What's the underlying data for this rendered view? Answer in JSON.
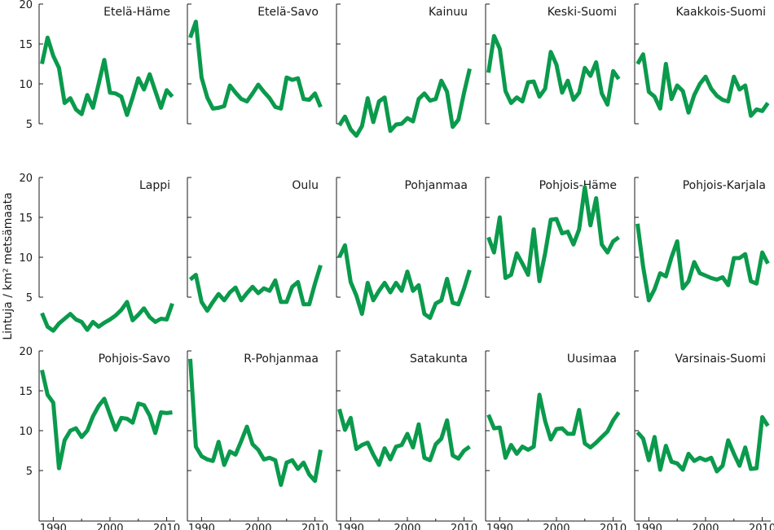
{
  "chart_data": {
    "type": "line",
    "layout": "small-multiples",
    "rows": 3,
    "cols": 5,
    "ylabel": "Lintuja / km² metsämaata",
    "xlim": [
      1987.5,
      2011.5
    ],
    "ylim": [
      0,
      20
    ],
    "xticks": [
      1990,
      2000,
      2010
    ],
    "yticks": [
      5,
      10,
      15,
      20
    ],
    "grid": false,
    "x": [
      1988,
      1989,
      1990,
      1991,
      1992,
      1993,
      1994,
      1995,
      1996,
      1997,
      1998,
      1999,
      2000,
      2001,
      2002,
      2003,
      2004,
      2005,
      2006,
      2007,
      2008,
      2009,
      2010,
      2011
    ],
    "line_color": "#0a9a4c",
    "panels": [
      {
        "name": "Etelä-Häme",
        "values": [
          12.5,
          15.8,
          13.5,
          12.0,
          7.6,
          8.2,
          6.8,
          6.2,
          8.6,
          7.0,
          10.0,
          13.0,
          8.9,
          8.8,
          8.4,
          6.1,
          8.3,
          10.7,
          9.3,
          11.2,
          9.1,
          7.0,
          9.2,
          8.4
        ]
      },
      {
        "name": "Etelä-Savo",
        "values": [
          15.8,
          17.8,
          10.8,
          8.3,
          6.9,
          7.0,
          7.2,
          9.8,
          8.9,
          8.1,
          7.8,
          8.8,
          9.9,
          9.0,
          8.2,
          7.1,
          6.9,
          10.8,
          10.5,
          10.7,
          8.1,
          8.0,
          8.8,
          7.1
        ]
      },
      {
        "name": "Kainuu",
        "values": [
          4.8,
          5.9,
          4.3,
          3.5,
          4.7,
          8.2,
          5.2,
          7.8,
          8.3,
          4.1,
          4.9,
          5.0,
          5.7,
          5.3,
          8.1,
          8.8,
          7.9,
          8.1,
          10.4,
          9.0,
          4.6,
          5.5,
          8.9,
          11.9
        ]
      },
      {
        "name": "Keski-Suomi",
        "values": [
          11.4,
          16.0,
          14.4,
          9.1,
          7.6,
          8.3,
          7.8,
          10.2,
          10.3,
          8.4,
          9.4,
          14.0,
          12.4,
          8.9,
          10.4,
          8.0,
          8.9,
          12.0,
          11.0,
          12.7,
          8.8,
          7.4,
          11.6,
          10.6
        ]
      },
      {
        "name": "Kaakkois-Suomi",
        "values": [
          12.5,
          13.7,
          9.0,
          8.4,
          6.9,
          12.5,
          8.1,
          9.8,
          9.1,
          6.4,
          8.6,
          10.0,
          10.9,
          9.4,
          8.5,
          8.0,
          7.8,
          10.9,
          9.3,
          9.8,
          6.0,
          6.8,
          6.6,
          7.6
        ]
      },
      {
        "name": "Lappi",
        "values": [
          3.0,
          1.3,
          0.8,
          1.7,
          2.3,
          2.9,
          2.2,
          1.9,
          0.9,
          1.9,
          1.3,
          1.8,
          2.2,
          2.7,
          3.4,
          4.4,
          2.1,
          2.8,
          3.6,
          2.5,
          1.9,
          2.3,
          2.2,
          4.2
        ]
      },
      {
        "name": "Oulu",
        "values": [
          7.2,
          7.8,
          4.4,
          3.3,
          4.4,
          5.4,
          4.6,
          5.6,
          6.2,
          4.6,
          5.5,
          6.3,
          5.5,
          6.1,
          5.8,
          7.1,
          4.4,
          4.4,
          6.3,
          6.9,
          4.1,
          4.1,
          6.7,
          9.0
        ]
      },
      {
        "name": "Pohjanmaa",
        "values": [
          10.0,
          11.5,
          6.9,
          5.2,
          2.9,
          6.8,
          4.6,
          5.8,
          6.8,
          5.6,
          6.8,
          5.8,
          8.2,
          5.8,
          6.5,
          2.9,
          2.4,
          4.2,
          4.6,
          7.3,
          4.3,
          4.1,
          6.1,
          8.4
        ]
      },
      {
        "name": "Pohjois-Häme",
        "values": [
          12.5,
          10.6,
          15.0,
          7.4,
          7.8,
          10.5,
          9.2,
          7.8,
          13.5,
          7.0,
          10.5,
          14.7,
          14.8,
          13.0,
          13.2,
          11.6,
          13.5,
          18.8,
          14.0,
          17.4,
          11.6,
          10.6,
          12.0,
          12.5
        ]
      },
      {
        "name": "Pohjois-Karjala",
        "values": [
          14.2,
          8.8,
          4.6,
          6.0,
          8.0,
          7.6,
          10.0,
          12.0,
          6.1,
          7.0,
          9.4,
          8.0,
          7.7,
          7.4,
          7.2,
          7.5,
          6.5,
          9.9,
          9.9,
          10.4,
          7.0,
          6.7,
          10.6,
          9.2
        ]
      },
      {
        "name": "Pohjois-Savo",
        "values": [
          17.6,
          14.5,
          13.5,
          5.3,
          8.8,
          10.0,
          10.3,
          9.2,
          10.0,
          11.8,
          13.1,
          14.0,
          12.0,
          10.1,
          11.6,
          11.5,
          11.0,
          13.4,
          13.2,
          11.9,
          9.7,
          12.3,
          12.2,
          12.3
        ]
      },
      {
        "name": "R-Pohjanmaa",
        "values": [
          19.0,
          8.0,
          6.8,
          6.4,
          6.2,
          8.6,
          5.7,
          7.4,
          7.0,
          8.7,
          10.5,
          8.3,
          7.6,
          6.4,
          6.6,
          6.3,
          3.2,
          6.0,
          6.3,
          5.2,
          6.0,
          4.5,
          3.7,
          7.6
        ]
      },
      {
        "name": "Satakunta",
        "values": [
          12.7,
          10.1,
          11.6,
          7.7,
          8.2,
          8.5,
          7.0,
          5.7,
          7.8,
          6.4,
          8.0,
          8.2,
          9.6,
          7.9,
          10.8,
          6.6,
          6.3,
          8.3,
          9.0,
          11.3,
          6.9,
          6.5,
          7.5,
          8.0
        ]
      },
      {
        "name": "Uusimaa",
        "values": [
          12.0,
          10.3,
          10.4,
          6.6,
          8.2,
          7.1,
          8.0,
          7.6,
          8.0,
          14.5,
          11.2,
          8.9,
          10.2,
          10.3,
          9.6,
          9.6,
          12.6,
          8.4,
          7.9,
          8.5,
          9.2,
          9.9,
          11.3,
          12.3
        ]
      },
      {
        "name": "Varsinais-Suomi",
        "values": [
          9.8,
          9.0,
          6.3,
          9.2,
          5.1,
          8.1,
          6.1,
          5.9,
          5.1,
          7.1,
          6.2,
          6.6,
          6.3,
          6.6,
          4.9,
          5.6,
          8.8,
          7.1,
          5.6,
          7.9,
          5.2,
          5.3,
          11.7,
          10.6
        ]
      }
    ]
  }
}
